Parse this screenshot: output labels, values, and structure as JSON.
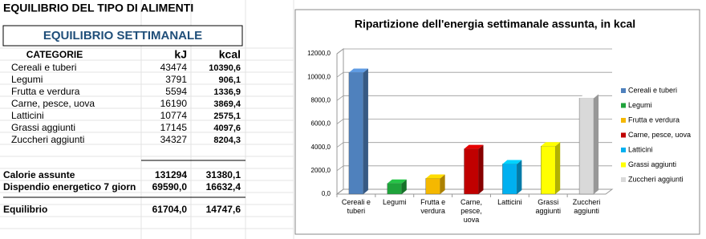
{
  "sheet": {
    "title": "EQUILIBRIO DEL TIPO DI ALIMENTI",
    "subtitle": "EQUILIBRIO SETTIMANALE",
    "header": [
      "CATEGORIE",
      "kJ",
      "kcal"
    ],
    "rows": [
      [
        "Cereali e tuberi",
        "43474",
        "10390,6"
      ],
      [
        "Legumi",
        "3791",
        "906,1"
      ],
      [
        "Frutta e verdura",
        "5594",
        "1336,9"
      ],
      [
        "Carne, pesce, uova",
        "16190",
        "3869,4"
      ],
      [
        "Latticini",
        "10774",
        "2575,1"
      ],
      [
        "Grassi aggiunti",
        "17145",
        "4097,6"
      ],
      [
        "Zuccheri aggiunti",
        "34327",
        "8204,3"
      ]
    ],
    "totals": [
      [
        "Calorie assunte",
        "131294",
        "31380,1"
      ],
      [
        "Dispendio energetico 7 giorn",
        "69590,0",
        "16632,4"
      ],
      [
        "Equilibrio",
        "61704,0",
        "14747,6"
      ]
    ]
  },
  "chart_data": {
    "type": "bar",
    "title": "Ripartizione dell'energia settimanale assunta, in kcal",
    "categories": [
      "Cereali e tuberi",
      "Legumi",
      "Frutta e verdura",
      "Carne, pesce, uova",
      "Latticini",
      "Grassi aggiunti",
      "Zuccheri aggiunti"
    ],
    "values": [
      10390.6,
      906.1,
      1336.9,
      3869.4,
      2575.1,
      4097.6,
      8204.3
    ],
    "colors": [
      "#4f81bd",
      "#1fa33b",
      "#f5b800",
      "#c00000",
      "#00b0f0",
      "#ffff00",
      "#d9d9d9"
    ],
    "ylim": [
      0,
      12000
    ],
    "yticks": [
      {
        "value": 0,
        "label": "0,0"
      },
      {
        "value": 2000,
        "label": "2000,0"
      },
      {
        "value": 4000,
        "label": "4000,0"
      },
      {
        "value": 6000,
        "label": "6000,0"
      },
      {
        "value": 8000,
        "label": "8000,0"
      },
      {
        "value": 10000,
        "label": "10000,0"
      },
      {
        "value": 12000,
        "label": "12000,0"
      }
    ],
    "grid": true,
    "legend": "right"
  }
}
